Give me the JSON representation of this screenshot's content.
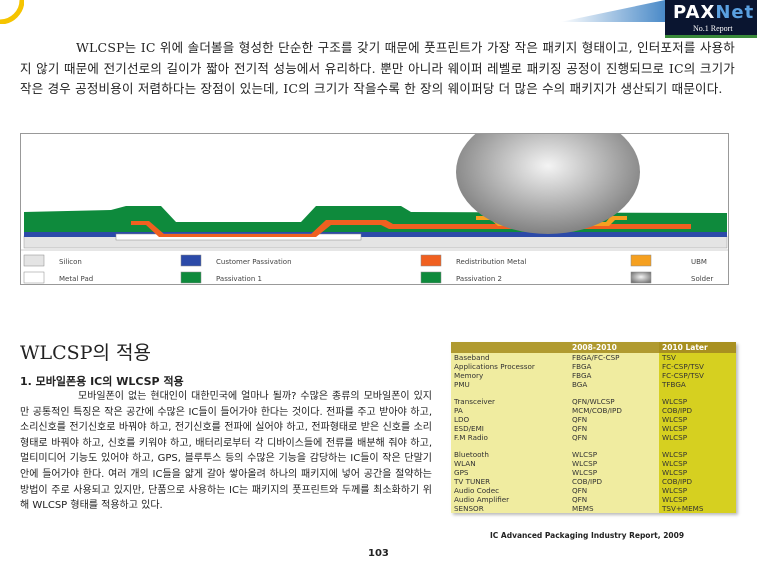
{
  "logo": {
    "brand_a": "PAX",
    "brand_b": "Net",
    "tagline": "No.1 Report"
  },
  "intro": "WLCSP는 IC 위에 솔더볼을 형성한 단순한 구조를 갖기 때문에 풋프린트가 가장 작은 패키지 형태이고, 인터포저를 사용하지 않기 때문에 전기선로의 길이가 짧아 전기적 성능에서 유리하다. 뿐만 아니라 웨이퍼 레벨로 패키징 공정이 진행되므로 IC의 크기가 작은 경우 공정비용이 저렴하다는 장점이 있는데, IC의 크기가 작을수록 한 장의 웨이퍼당 더 많은 수의 패키지가 생산되기 때문이다.",
  "diagram": {
    "legend": [
      {
        "label": "Silicon",
        "color": "#e4e4e4"
      },
      {
        "label": "Customer Passivation",
        "color": "#2c4aa8"
      },
      {
        "label": "Redistribution Metal",
        "color": "#f06020"
      },
      {
        "label": "UBM",
        "color": "#f5a020"
      },
      {
        "label": "Metal Pad",
        "color": "#ffffff"
      },
      {
        "label": "Passivation 1",
        "color": "#0e8a3c"
      },
      {
        "label": "Passivation 2",
        "color": "#0e8a3c"
      },
      {
        "label": "Solder",
        "color": "#999999"
      }
    ]
  },
  "section_title": "WLCSP의 적용",
  "subsection_title": "1. 모바일폰용 IC의 WLCSP 적용",
  "body": "모바일폰이 없는 현대인이 대한민국에 얼마나 될까? 수많은 종류의 모바일폰이 있지만 공통적인 특징은 작은 공간에 수많은 IC들이 들어가야 한다는 것이다. 전파를 주고 받아야 하고, 소리신호를 전기신호로 바꿔야 하고, 전기신호를 전파에 실어야 하고, 전파형태로 받은 신호를 소리형태로 바꿔야 하고, 신호를 키워야 하고, 배터리로부터 각 디바이스들에 전류를 배분해 줘야 하고, 멀티미디어 기능도 있어야 하고, GPS, 블루투스 등의 수많은 기능을 감당하는 IC들이 작은 단말기 안에 들어가야 한다. 여러 개의 IC들을 얇게 갈아 쌓아올려 하나의 패키지에 넣어 공간을 절약하는 방법이 주로 사용되고 있지만, 단품으로 사용하는 IC는 패키지의 풋프린트와 두께를 최소화하기 위해 WLCSP 형태를 적용하고 있다.",
  "table": {
    "headers": [
      "",
      "2008-2010",
      "2010 Later"
    ],
    "groups": [
      [
        [
          "Baseband",
          "FBGA/FC-CSP",
          "TSV"
        ],
        [
          "Applications Processor",
          "FBGA",
          "FC-CSP/TSV"
        ],
        [
          "Memory",
          "FBGA",
          "FC-CSP/TSV"
        ],
        [
          "PMU",
          "BGA",
          "TFBGA"
        ]
      ],
      [
        [
          "Transceiver",
          "QFN/WLCSP",
          "WLCSP"
        ],
        [
          "PA",
          "MCM/COB/IPD",
          "COB/IPD"
        ],
        [
          "LDO",
          "QFN",
          "WLCSP"
        ],
        [
          "ESD/EMI",
          "QFN",
          "WLCSP"
        ],
        [
          "F.M Radio",
          "QFN",
          "WLCSP"
        ]
      ],
      [
        [
          "Bluetooth",
          "WLCSP",
          "WLCSP"
        ],
        [
          "WLAN",
          "WLCSP",
          "WLCSP"
        ],
        [
          "GPS",
          "WLCSP",
          "WLCSP"
        ],
        [
          "TV TUNER",
          "COB/IPD",
          "COB/IPD"
        ],
        [
          "Audio Codec",
          "QFN",
          "WLCSP"
        ],
        [
          "Audio Amplifier",
          "QFN",
          "WLCSP"
        ],
        [
          "SENSOR",
          "MEMS",
          "TSV+MEMS"
        ]
      ]
    ],
    "source": "IC Advanced Packaging Industry Report, 2009"
  },
  "page_number": "103"
}
